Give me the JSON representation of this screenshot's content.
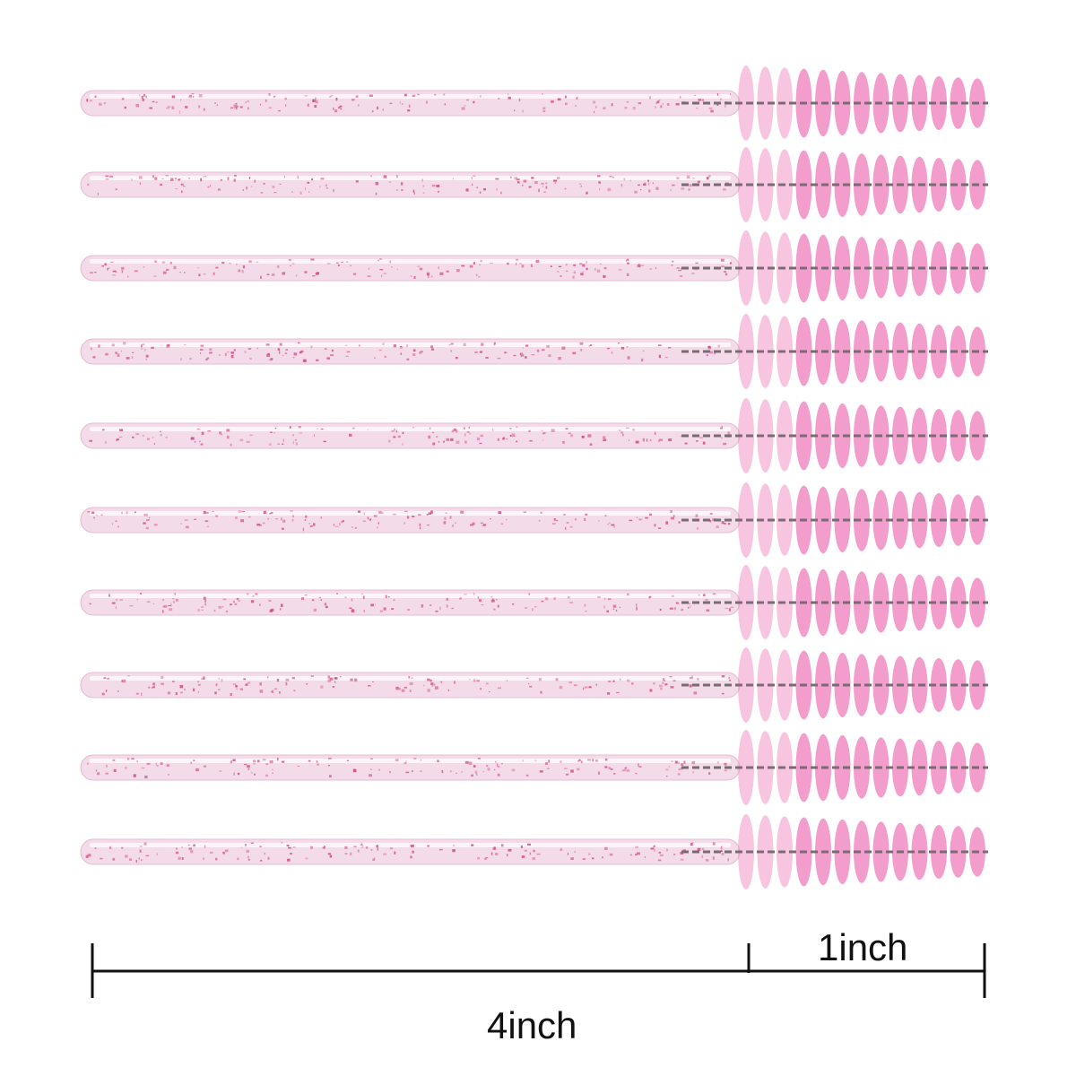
{
  "product": {
    "wand_count": 10,
    "handle_color": "#f3dbe9",
    "glitter_color": "#d2457f",
    "bristle_color": "#f08cc2",
    "wire_color": "#7a6a74"
  },
  "scale": {
    "short_label": "1inch",
    "long_label": "4inch",
    "line_color": "#111111"
  }
}
